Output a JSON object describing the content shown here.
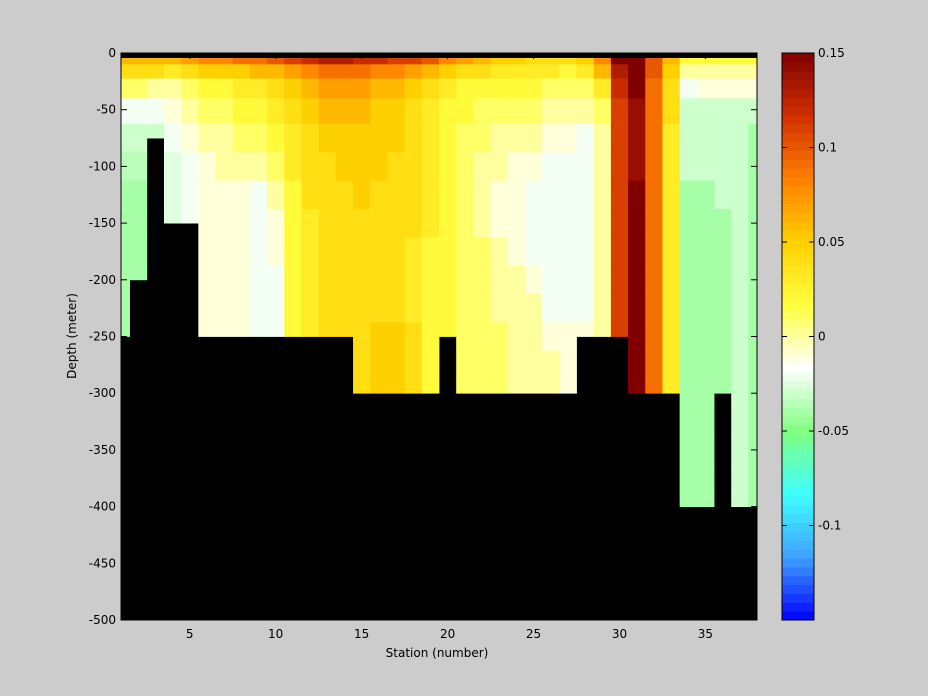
{
  "chart_data": {
    "type": "heatmap",
    "xlabel": "Station (number)",
    "ylabel": "Depth (meter)",
    "xlim": [
      1,
      38
    ],
    "ylim": [
      -500,
      0
    ],
    "x_ticks": [
      5,
      10,
      15,
      20,
      25,
      30,
      35
    ],
    "y_ticks": [
      0,
      -50,
      -100,
      -150,
      -200,
      -250,
      -300,
      -350,
      -400,
      -450,
      -500
    ],
    "colorbar": {
      "range": [
        -0.15,
        0.15
      ],
      "ticks": [
        0.15,
        0.1,
        0.05,
        0,
        -0.05,
        -0.1
      ],
      "tick_labels": [
        "0.15",
        "0.1",
        "0.05",
        "0",
        "-0.05",
        "-0.1"
      ],
      "colormap": [
        "#0000ff",
        "#3fa0ff",
        "#40ffff",
        "#80ff80",
        "#ffffff",
        "#ffff40",
        "#ffd000",
        "#ff8000",
        "#d03000",
        "#800000"
      ]
    },
    "stations": [
      1,
      2,
      3,
      4,
      5,
      6,
      7,
      8,
      9,
      10,
      11,
      12,
      13,
      14,
      15,
      16,
      17,
      18,
      19,
      20,
      21,
      22,
      23,
      24,
      25,
      26,
      27,
      28,
      29,
      30,
      31,
      32,
      33,
      34,
      35,
      36,
      37,
      38
    ],
    "bottom_depth": [
      250,
      200,
      75,
      150,
      150,
      250,
      250,
      250,
      250,
      250,
      250,
      250,
      250,
      250,
      300,
      300,
      300,
      300,
      300,
      250,
      300,
      300,
      300,
      300,
      300,
      300,
      300,
      250,
      250,
      250,
      300,
      300,
      300,
      400,
      400,
      300,
      400,
      400
    ],
    "row_depths": [
      0,
      5,
      15,
      30,
      50,
      75,
      100,
      125,
      150,
      175,
      200,
      225,
      250,
      275,
      300,
      325,
      350,
      375,
      400
    ],
    "anomaly": [
      [
        0.08,
        0.06,
        0.04,
        0.01,
        -0.02,
        -0.03,
        -0.035,
        -0.04,
        -0.04,
        -0.04,
        -0.04,
        -0.04,
        -0.04,
        -0.04,
        -0.04,
        -0.04,
        -0.04,
        -0.04,
        -0.04
      ],
      [
        0.08,
        0.06,
        0.04,
        0.01,
        -0.02,
        -0.03,
        -0.035,
        -0.04,
        -0.04,
        -0.04,
        -0.04,
        -0.04,
        -0.04,
        -0.04,
        -0.04,
        -0.04,
        -0.04,
        -0.04,
        -0.04
      ],
      [
        0.09,
        0.06,
        0.04,
        0.0,
        -0.02,
        -0.03,
        -0.035,
        -0.035,
        -0.035,
        -0.035,
        -0.035,
        -0.035,
        -0.035,
        -0.035,
        -0.035,
        -0.035,
        -0.035,
        -0.035,
        -0.035
      ],
      [
        0.1,
        0.06,
        0.03,
        0.0,
        -0.01,
        -0.02,
        -0.025,
        -0.025,
        -0.025,
        -0.025,
        -0.025,
        -0.025,
        -0.025,
        -0.025,
        -0.025,
        -0.025,
        -0.025,
        -0.025,
        -0.025
      ],
      [
        0.1,
        0.07,
        0.04,
        0.01,
        0.0,
        -0.01,
        -0.02,
        -0.02,
        -0.02,
        -0.02,
        -0.02,
        -0.02,
        -0.02,
        -0.02,
        -0.02,
        -0.02,
        -0.02,
        -0.02,
        -0.02
      ],
      [
        0.11,
        0.08,
        0.05,
        0.02,
        0.01,
        0.0,
        -0.01,
        -0.01,
        -0.01,
        -0.01,
        -0.01,
        -0.01,
        -0.01,
        -0.01,
        -0.01,
        -0.01,
        -0.01,
        -0.01,
        -0.01
      ],
      [
        0.12,
        0.08,
        0.05,
        0.02,
        0.01,
        0.0,
        0.0,
        -0.01,
        -0.01,
        -0.01,
        -0.01,
        -0.01,
        -0.01,
        -0.01,
        -0.01,
        -0.01,
        -0.01,
        -0.01,
        -0.01
      ],
      [
        0.13,
        0.09,
        0.05,
        0.03,
        0.02,
        0.01,
        0.0,
        -0.01,
        -0.01,
        -0.01,
        -0.01,
        -0.01,
        -0.01,
        -0.01,
        -0.01,
        -0.01,
        -0.01,
        -0.01,
        -0.01
      ],
      [
        0.13,
        0.09,
        0.06,
        0.03,
        0.02,
        0.01,
        0.0,
        -0.02,
        -0.02,
        -0.02,
        -0.02,
        -0.02,
        -0.02,
        -0.02,
        -0.02,
        -0.02,
        -0.02,
        -0.02,
        -0.02
      ],
      [
        0.14,
        0.1,
        0.06,
        0.04,
        0.03,
        0.02,
        0.01,
        0.0,
        -0.01,
        -0.01,
        -0.02,
        -0.02,
        -0.02,
        -0.02,
        -0.02,
        -0.02,
        -0.02,
        -0.02,
        -0.02
      ],
      [
        0.14,
        0.11,
        0.07,
        0.05,
        0.04,
        0.03,
        0.03,
        0.02,
        0.02,
        0.02,
        0.02,
        0.02,
        0.02,
        0.02,
        0.02,
        0.02,
        0.02,
        0.02,
        0.02
      ],
      [
        0.15,
        0.12,
        0.08,
        0.06,
        0.05,
        0.04,
        0.04,
        0.04,
        0.03,
        0.03,
        0.03,
        0.03,
        0.03,
        0.03,
        0.03,
        0.03,
        0.03,
        0.03,
        0.03
      ],
      [
        0.15,
        0.13,
        0.09,
        0.07,
        0.06,
        0.05,
        0.04,
        0.04,
        0.04,
        0.04,
        0.04,
        0.04,
        0.04,
        0.04,
        0.04,
        0.04,
        0.04,
        0.04,
        0.04
      ],
      [
        0.15,
        0.13,
        0.09,
        0.07,
        0.06,
        0.05,
        0.05,
        0.04,
        0.04,
        0.04,
        0.04,
        0.04,
        0.04,
        0.04,
        0.04,
        0.04,
        0.04,
        0.04,
        0.04
      ],
      [
        0.15,
        0.12,
        0.09,
        0.07,
        0.06,
        0.05,
        0.05,
        0.05,
        0.04,
        0.04,
        0.04,
        0.04,
        0.04,
        0.04,
        0.04,
        0.04,
        0.04,
        0.04,
        0.04
      ],
      [
        0.15,
        0.12,
        0.08,
        0.06,
        0.05,
        0.05,
        0.05,
        0.04,
        0.04,
        0.04,
        0.04,
        0.04,
        0.05,
        0.05,
        0.05,
        0.05,
        0.05,
        0.05,
        0.05
      ],
      [
        0.15,
        0.11,
        0.08,
        0.06,
        0.05,
        0.05,
        0.04,
        0.04,
        0.04,
        0.04,
        0.04,
        0.04,
        0.05,
        0.05,
        0.05,
        0.05,
        0.05,
        0.05,
        0.05
      ],
      [
        0.14,
        0.11,
        0.07,
        0.05,
        0.04,
        0.04,
        0.04,
        0.04,
        0.04,
        0.03,
        0.03,
        0.03,
        0.04,
        0.04,
        0.04,
        0.04,
        0.04,
        0.04,
        0.04
      ],
      [
        0.13,
        0.1,
        0.06,
        0.04,
        0.03,
        0.03,
        0.03,
        0.03,
        0.03,
        0.02,
        0.02,
        0.02,
        0.02,
        0.02,
        0.02,
        0.02,
        0.02,
        0.02,
        0.02
      ],
      [
        0.1,
        0.08,
        0.05,
        0.03,
        0.02,
        0.02,
        0.02,
        0.02,
        0.02,
        0.02,
        0.02,
        0.02,
        0.02,
        0.02,
        0.02,
        0.02,
        0.02,
        0.02,
        0.02
      ],
      [
        0.09,
        0.07,
        0.04,
        0.02,
        0.02,
        0.01,
        0.01,
        0.01,
        0.01,
        0.01,
        0.01,
        0.01,
        0.01,
        0.01,
        0.01,
        0.01,
        0.01,
        0.01,
        0.01
      ],
      [
        0.08,
        0.06,
        0.04,
        0.02,
        0.01,
        0.01,
        0.0,
        0.0,
        0.0,
        0.01,
        0.01,
        0.01,
        0.01,
        0.01,
        0.01,
        0.01,
        0.01,
        0.01,
        0.01
      ],
      [
        0.07,
        0.05,
        0.03,
        0.02,
        0.01,
        0.0,
        0.0,
        -0.01,
        -0.01,
        0.0,
        0.0,
        0.0,
        0.01,
        0.01,
        0.01,
        0.01,
        0.01,
        0.01,
        0.01
      ],
      [
        0.06,
        0.05,
        0.03,
        0.02,
        0.01,
        0.0,
        -0.01,
        -0.01,
        -0.01,
        -0.01,
        0.0,
        0.0,
        0.0,
        0.0,
        0.0,
        0.0,
        0.0,
        0.0,
        0.0
      ],
      [
        0.05,
        0.04,
        0.03,
        0.02,
        0.01,
        0.0,
        -0.01,
        -0.02,
        -0.02,
        -0.02,
        -0.01,
        0.0,
        0.0,
        0.0,
        0.0,
        0.0,
        0.0,
        0.0,
        0.0
      ],
      [
        0.05,
        0.04,
        0.03,
        0.01,
        0.0,
        -0.01,
        -0.02,
        -0.02,
        -0.02,
        -0.02,
        -0.02,
        -0.02,
        -0.01,
        0.0,
        0.0,
        0.0,
        0.0,
        0.0,
        0.0
      ],
      [
        0.05,
        0.04,
        0.02,
        0.01,
        0.0,
        -0.01,
        -0.02,
        -0.02,
        -0.02,
        -0.02,
        -0.02,
        -0.02,
        -0.01,
        -0.01,
        -0.01,
        -0.01,
        -0.01,
        -0.01,
        -0.01
      ],
      [
        0.06,
        0.05,
        0.03,
        0.01,
        0.0,
        -0.02,
        -0.02,
        -0.02,
        -0.02,
        -0.02,
        -0.02,
        -0.02,
        -0.01,
        -0.01,
        -0.01,
        -0.01,
        -0.01,
        -0.01,
        -0.01
      ],
      [
        0.1,
        0.08,
        0.06,
        0.03,
        0.01,
        0.0,
        0.0,
        0.0,
        0.0,
        0.0,
        0.0,
        0.0,
        0.0,
        0.0,
        0.0,
        0.0,
        0.0,
        0.0,
        0.0
      ],
      [
        0.15,
        0.15,
        0.13,
        0.12,
        0.11,
        0.11,
        0.11,
        0.11,
        0.11,
        0.11,
        0.11,
        0.11,
        0.11,
        0.11,
        0.11,
        0.11,
        0.11,
        0.11,
        0.11
      ],
      [
        0.15,
        0.15,
        0.15,
        0.15,
        0.14,
        0.14,
        0.14,
        0.15,
        0.15,
        0.15,
        0.15,
        0.15,
        0.15,
        0.15,
        0.15,
        0.15,
        0.15,
        0.15,
        0.15
      ],
      [
        0.11,
        0.1,
        0.1,
        0.09,
        0.09,
        0.09,
        0.09,
        0.09,
        0.09,
        0.09,
        0.09,
        0.09,
        0.09,
        0.09,
        0.09,
        0.09,
        0.09,
        0.09,
        0.09
      ],
      [
        0.08,
        0.06,
        0.05,
        0.04,
        0.04,
        0.03,
        0.03,
        0.03,
        0.03,
        0.03,
        0.03,
        0.03,
        0.03,
        0.03,
        0.03,
        0.03,
        0.03,
        0.03,
        0.03
      ],
      [
        0.04,
        0.02,
        0.0,
        -0.02,
        -0.03,
        -0.03,
        -0.03,
        -0.04,
        -0.04,
        -0.04,
        -0.04,
        -0.04,
        -0.04,
        -0.04,
        -0.04,
        -0.04,
        -0.04,
        -0.04,
        -0.04
      ],
      [
        0.04,
        0.02,
        0.0,
        -0.01,
        -0.03,
        -0.03,
        -0.03,
        -0.04,
        -0.04,
        -0.04,
        -0.04,
        -0.04,
        -0.04,
        -0.04,
        -0.04,
        -0.04,
        -0.04,
        -0.04,
        -0.04
      ],
      [
        0.04,
        0.02,
        0.0,
        -0.01,
        -0.03,
        -0.03,
        -0.03,
        -0.03,
        -0.04,
        -0.04,
        -0.04,
        -0.04,
        -0.04,
        -0.04,
        -0.04,
        -0.04,
        -0.04,
        -0.04,
        -0.04
      ],
      [
        0.04,
        0.02,
        0.0,
        -0.01,
        -0.03,
        -0.03,
        -0.03,
        -0.03,
        -0.03,
        -0.03,
        -0.03,
        -0.03,
        -0.03,
        -0.03,
        -0.03,
        -0.03,
        -0.03,
        -0.03,
        -0.03
      ],
      [
        0.04,
        0.02,
        0.0,
        -0.01,
        -0.03,
        -0.04,
        -0.04,
        -0.04,
        -0.04,
        -0.04,
        -0.04,
        -0.04,
        -0.04,
        -0.04,
        -0.04,
        -0.04,
        -0.04,
        -0.04,
        -0.04
      ]
    ]
  }
}
